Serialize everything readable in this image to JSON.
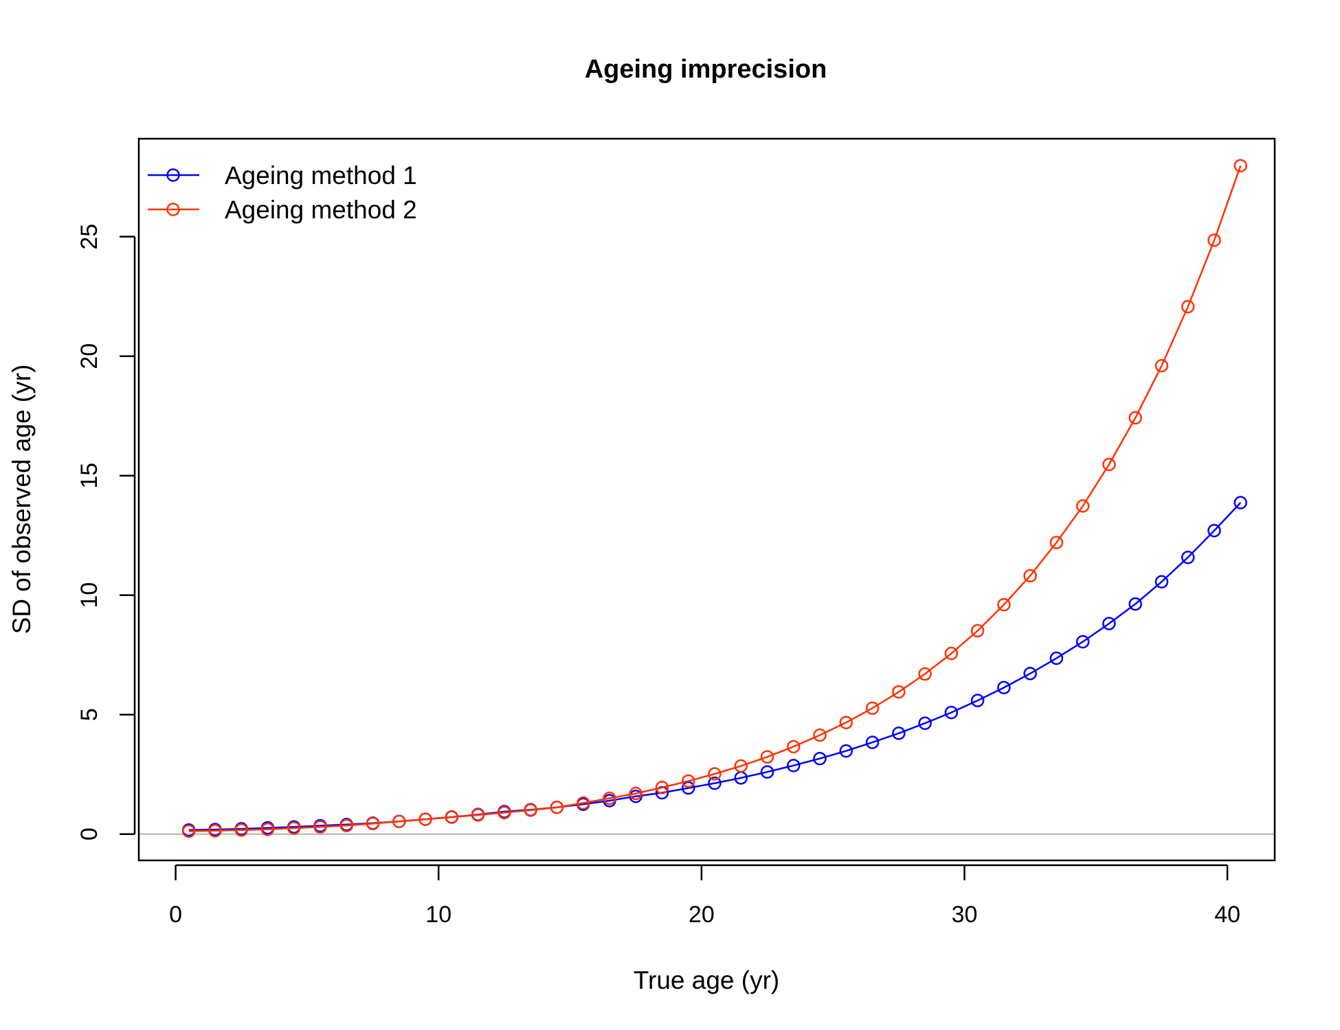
{
  "chart_data": {
    "type": "line",
    "title": "Ageing imprecision",
    "xlabel": "True age (yr)",
    "ylabel": "SD of observed age (yr)",
    "xlim": [
      -1.4,
      41.8
    ],
    "ylim": [
      -1.1,
      29.1
    ],
    "xticks": [
      0,
      10,
      20,
      30,
      40
    ],
    "yticks": [
      0,
      5,
      10,
      15,
      20,
      25
    ],
    "grid": false,
    "reference_line": {
      "y": 0,
      "color": "#bebebe"
    },
    "legend": {
      "position": "top-left"
    },
    "x": [
      0.5,
      1.5,
      2.5,
      3.5,
      4.5,
      5.5,
      6.5,
      7.5,
      8.5,
      9.5,
      10.5,
      11.5,
      12.5,
      13.5,
      14.5,
      15.5,
      16.5,
      17.5,
      18.5,
      19.5,
      20.5,
      21.5,
      22.5,
      23.5,
      24.5,
      25.5,
      26.5,
      27.5,
      28.5,
      29.5,
      30.5,
      31.5,
      32.5,
      33.5,
      34.5,
      35.5,
      36.5,
      37.5,
      38.5,
      39.5,
      40.5
    ],
    "series": [
      {
        "name": "Ageing method 1",
        "color": "#0000ff",
        "values": [
          0.17,
          0.19,
          0.22,
          0.26,
          0.3,
          0.35,
          0.4,
          0.46,
          0.53,
          0.62,
          0.71,
          0.82,
          0.94,
          1.02,
          1.12,
          1.25,
          1.4,
          1.58,
          1.73,
          1.93,
          2.13,
          2.35,
          2.6,
          2.87,
          3.16,
          3.48,
          3.84,
          4.22,
          4.64,
          5.09,
          5.59,
          6.13,
          6.72,
          7.36,
          8.05,
          8.81,
          9.63,
          10.56,
          11.58,
          12.7,
          13.87
        ]
      },
      {
        "name": "Ageing method 2",
        "color": "#ff3300",
        "values": [
          0.12,
          0.14,
          0.17,
          0.2,
          0.25,
          0.3,
          0.36,
          0.44,
          0.53,
          0.62,
          0.72,
          0.8,
          0.9,
          1.0,
          1.12,
          1.3,
          1.5,
          1.7,
          1.95,
          2.22,
          2.52,
          2.85,
          3.23,
          3.66,
          4.14,
          4.67,
          5.27,
          5.95,
          6.7,
          7.56,
          8.51,
          9.6,
          10.81,
          12.2,
          13.73,
          15.47,
          17.42,
          19.6,
          22.07,
          24.85,
          27.97
        ]
      }
    ]
  }
}
